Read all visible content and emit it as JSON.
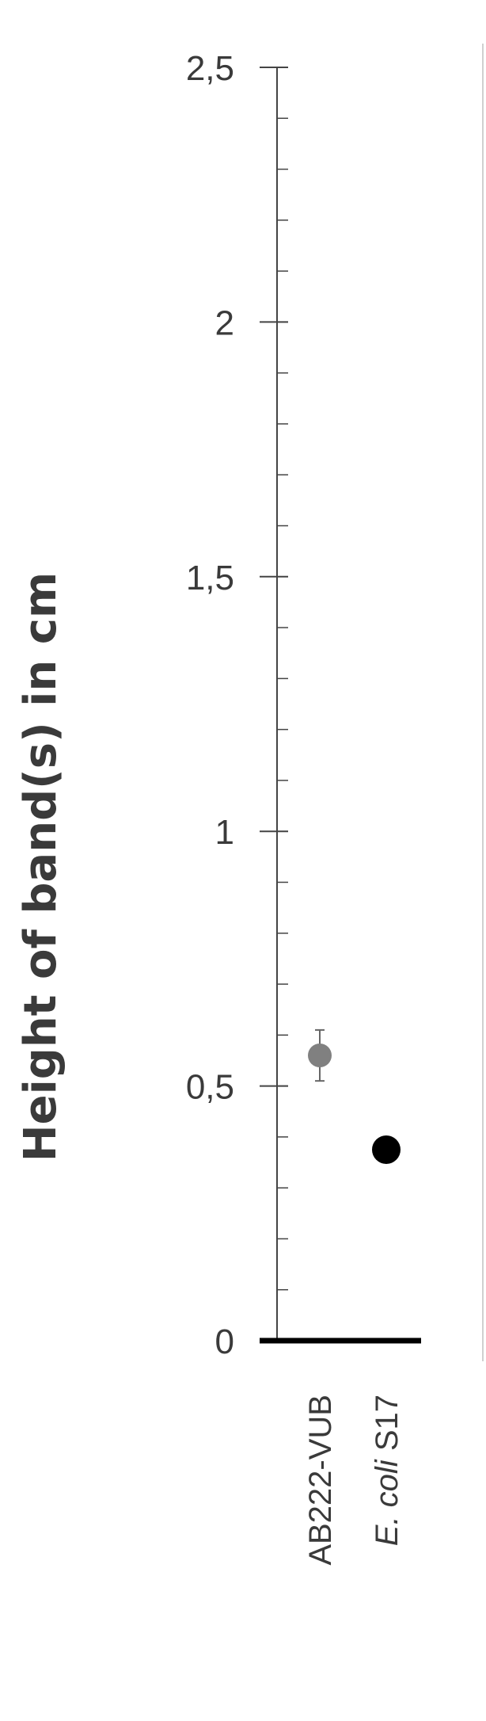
{
  "chart_data": {
    "type": "scatter",
    "ylabel": "Height of band(s) in cm",
    "xlabel": "",
    "ylim": [
      0,
      2.5
    ],
    "y_major_step": 0.5,
    "y_minor_step": 0.1,
    "y_tick_labels": [
      "0",
      "0,5",
      "1",
      "1,5",
      "2",
      "2,5"
    ],
    "categories": [
      {
        "label": "AB222-VUB",
        "italic_part": "",
        "plain_part": "AB222-VUB"
      },
      {
        "label": "E. coli S17",
        "italic_part": "E. coli",
        "plain_part": " S17"
      }
    ],
    "points": [
      {
        "category": "AB222-VUB",
        "value": 0.56,
        "error_low": 0.51,
        "error_high": 0.61,
        "color": "#808080"
      },
      {
        "category": "E. coli S17",
        "value": 0.375,
        "error_low": 0.35,
        "error_high": 0.4,
        "color": "#000000"
      }
    ],
    "grid": false,
    "legend": "none"
  }
}
